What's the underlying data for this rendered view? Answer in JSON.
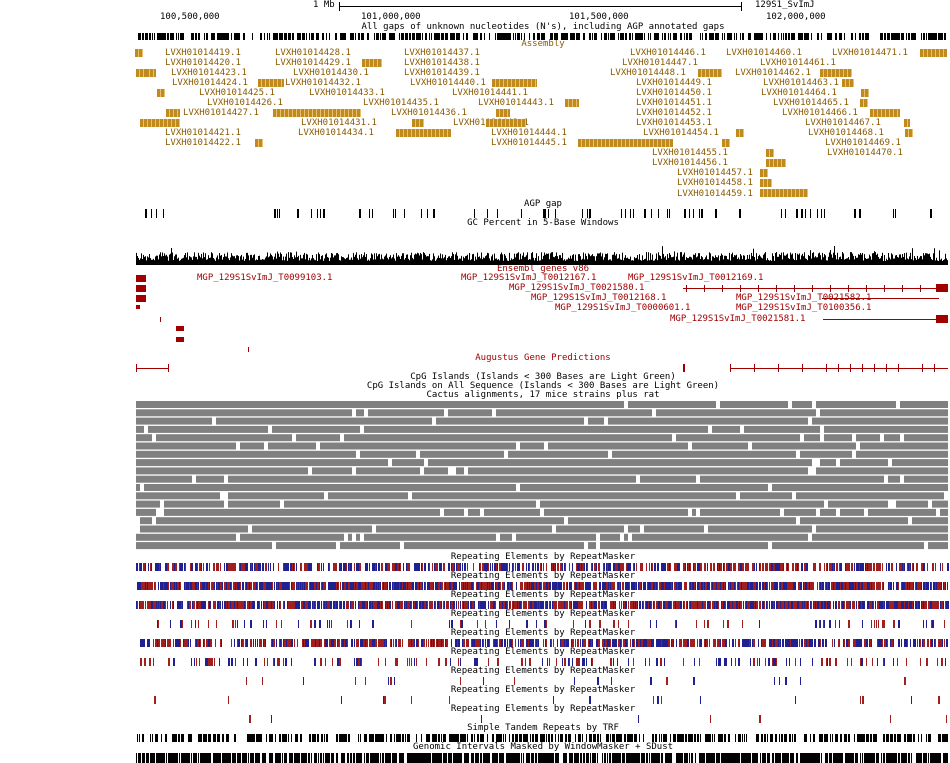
{
  "ruler": {
    "scale_label": "1 Mb",
    "assembly_name": "129S1_SvImJ",
    "ticks": [
      "100,500,000",
      "101,000,000",
      "101,500,000",
      "102,000,000"
    ]
  },
  "tracks": {
    "gap_all": "All gaps of unknown nucleotides (N's), including AGP annotated gaps",
    "assembly": "Assembly",
    "agp_gap": "AGP gap",
    "gc": "GC Percent in 5-Base Windows",
    "ensembl": "Ensembl genes v86",
    "augustus": "Augustus Gene Predictions",
    "cpg1": "CpG Islands (Islands < 300 Bases are Light Green)",
    "cpg2": "CpG Islands on All Sequence (Islands < 300 Bases are Light Green)",
    "cactus": "Cactus alignments, 17 mice strains plus rat",
    "rmsk": "Repeating Elements by RepeatMasker",
    "trf": "Simple Tandem Repeats by TRF",
    "wm": "Genomic Intervals Masked by WindowMasker + SDust"
  },
  "assembly_items": [
    "LVXH01014419.1",
    "LVXH01014428.1",
    "LVXH01014437.1",
    "LVXH01014446.1",
    "LVXH01014460.1",
    "LVXH01014471.1",
    "LVXH01014420.1",
    "LVXH01014429.1",
    "LVXH01014438.1",
    "LVXH01014447.1",
    "LVXH01014461.1",
    "LVXH01014423.1",
    "LVXH01014430.1",
    "LVXH01014439.1",
    "LVXH01014448.1",
    "LVXH01014462.1",
    "LVXH01014424.1",
    "LVXH01014432.1",
    "LVXH01014440.1",
    "LVXH01014449.1",
    "LVXH01014463.1",
    "LVXH01014425.1",
    "LVXH01014433.1",
    "LVXH01014441.1",
    "LVXH01014450.1",
    "LVXH01014464.1",
    "LVXH01014426.1",
    "LVXH01014435.1",
    "LVXH01014443.1",
    "LVXH01014451.1",
    "LVXH01014465.1",
    "LVXH01014427.1",
    "LVXH01014436.1",
    "LVXH01014452.1",
    "LVXH01014466.1",
    "LVXH01014431.1",
    "LVXH01014442.1",
    "LVXH01014453.1",
    "LVXH01014467.1",
    "LVXH01014421.1",
    "LVXH01014434.1",
    "LVXH01014444.1",
    "LVXH01014454.1",
    "LVXH01014468.1",
    "LVXH01014422.1",
    "LVXH01014445.1",
    "LVXH01014469.1",
    "LVXH01014455.1",
    "LVXH01014470.1",
    "LVXH01014456.1",
    "LVXH01014457.1",
    "LVXH01014458.1",
    "LVXH01014459.1"
  ],
  "ensembl_items": [
    "MGP_129S1SvImJ_T0099103.1",
    "MGP_129S1SvImJ_T0012167.1",
    "MGP_129S1SvImJ_T0012169.1",
    "MGP_129S1SvImJ_T0021580.1",
    "MGP_129S1SvImJ_T0012168.1",
    "MGP_129S1SvImJ_T0021582.1",
    "MGP_129S1SvImJ_T0000601.1",
    "MGP_129S1SvImJ_T0100356.1",
    "MGP_129S1SvImJ_T0021581.1"
  ],
  "colors": {
    "assembly": "#c08a1c",
    "ensembl": "#a00000",
    "rmsk_red": "#a02020",
    "rmsk_blue": "#202090",
    "cactus": "#808080"
  }
}
